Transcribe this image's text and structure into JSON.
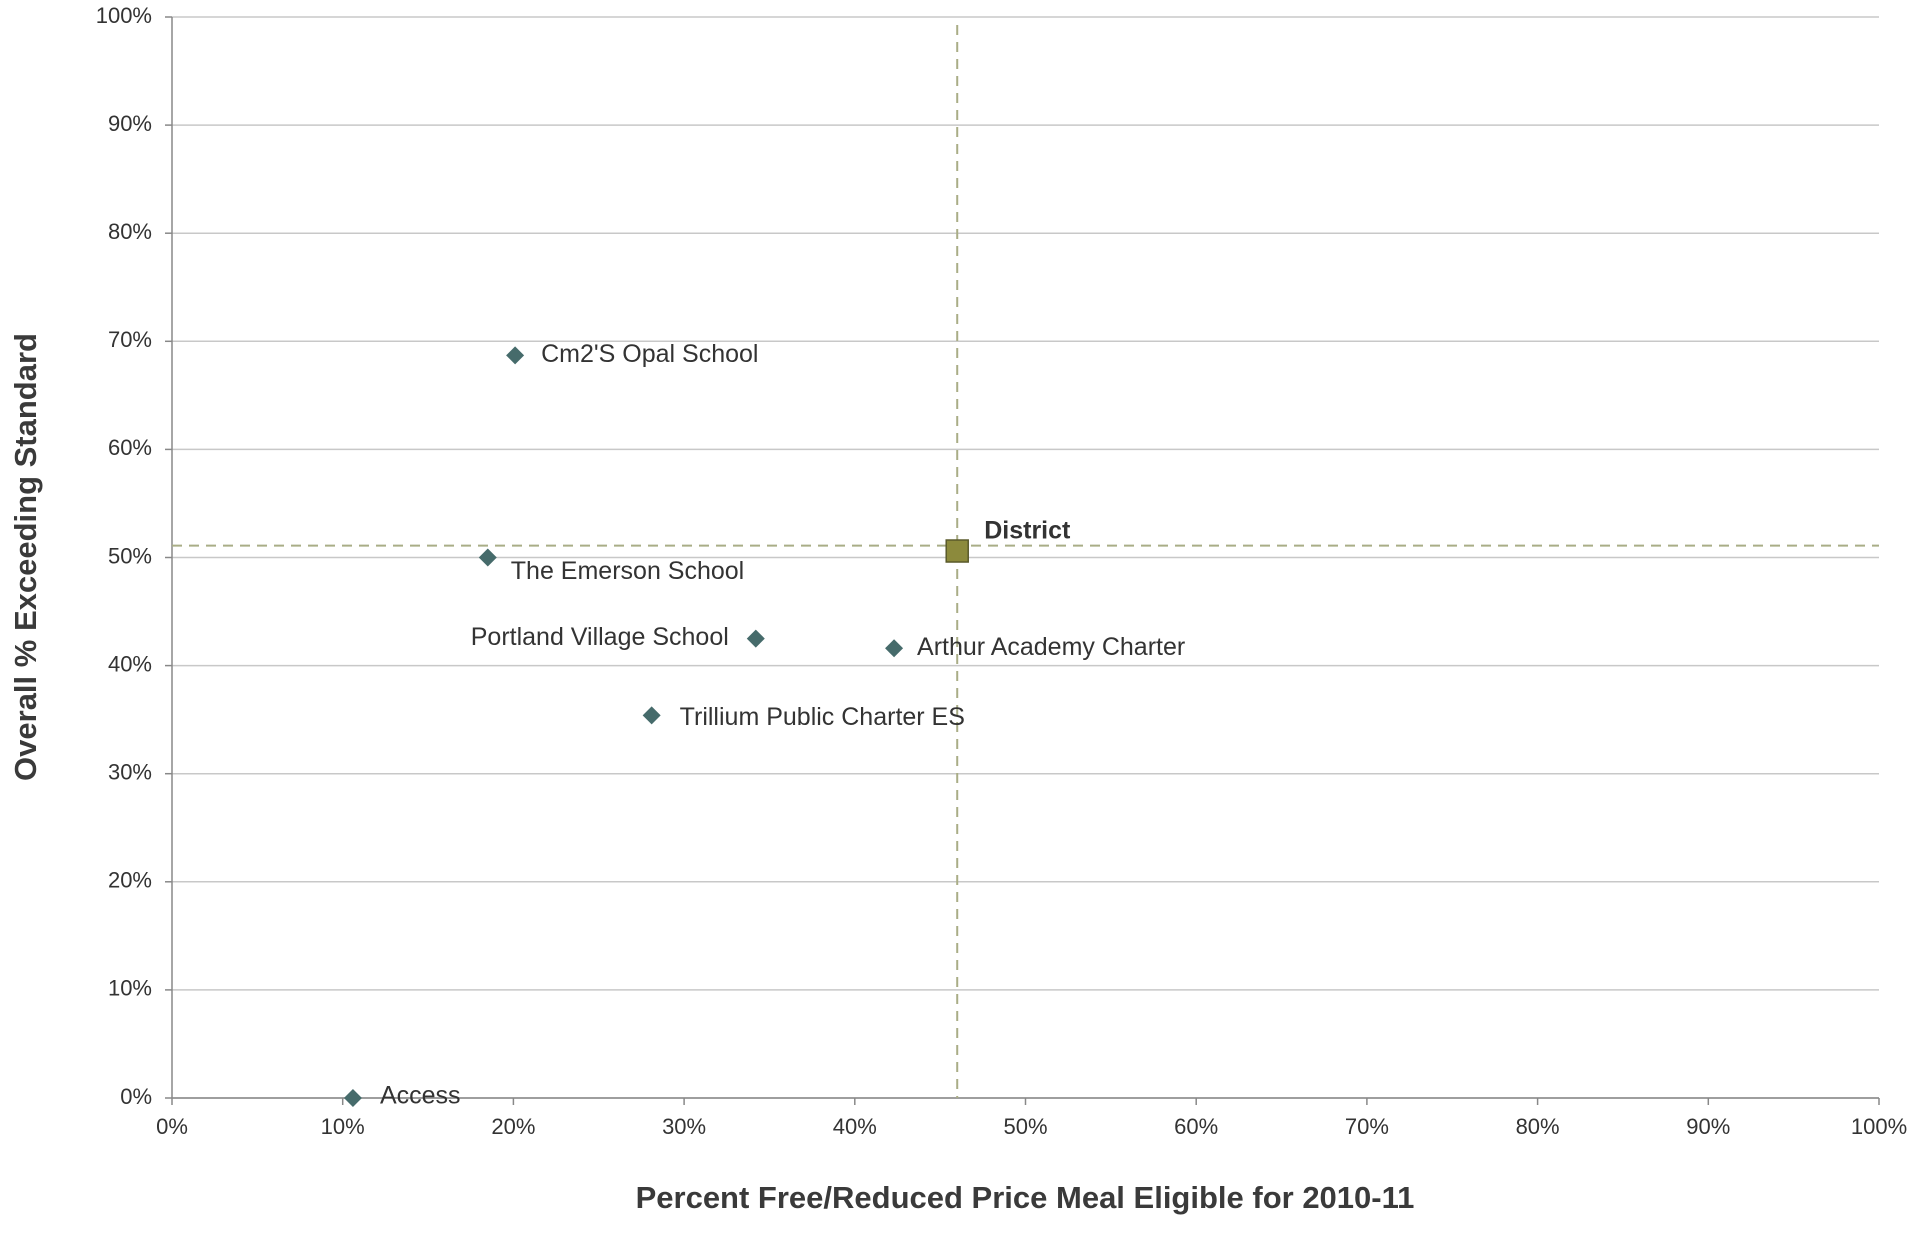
{
  "chart_data": {
    "type": "scatter",
    "x_label": "Percent Free/Reduced Price Meal Eligible for 2010-11",
    "y_label": "Overall % Exceeding Standard",
    "labels": [
      "Access",
      "Cm2'S Opal School",
      "The Emerson School",
      "Portland Village School",
      "Arthur Academy Charter",
      "Trillium Public Charter ES"
    ],
    "x": [
      10.6,
      20.1,
      18.5,
      34.2,
      42.3,
      28.1
    ],
    "values": [
      0,
      68.7,
      50.0,
      42.5,
      41.6,
      35.4
    ],
    "color": "#466b6b",
    "district": {
      "label": "District",
      "x": 46.0,
      "y": 50.6,
      "color": "#8c8a3c"
    },
    "reference_lines": {
      "x": 46.0,
      "y": 51.1,
      "color": "#a9ad86"
    },
    "xlim": [
      0,
      100
    ],
    "ylim": [
      0,
      100
    ],
    "xticks": [
      {
        "value": 0,
        "label": "0%"
      },
      {
        "value": 10,
        "label": "10%"
      },
      {
        "value": 20,
        "label": "20%"
      },
      {
        "value": 30,
        "label": "30%"
      },
      {
        "value": 40,
        "label": "40%"
      },
      {
        "value": 50,
        "label": "50%"
      },
      {
        "value": 60,
        "label": "60%"
      },
      {
        "value": 70,
        "label": "70%"
      },
      {
        "value": 80,
        "label": "80%"
      },
      {
        "value": 90,
        "label": "90%"
      },
      {
        "value": 100,
        "label": "100%"
      }
    ],
    "yticks": [
      {
        "value": 0,
        "label": "0%"
      },
      {
        "value": 10,
        "label": "10%"
      },
      {
        "value": 20,
        "label": "20%"
      },
      {
        "value": 30,
        "label": "30%"
      },
      {
        "value": 40,
        "label": "40%"
      },
      {
        "value": 50,
        "label": "50%"
      },
      {
        "value": 60,
        "label": "60%"
      },
      {
        "value": 70,
        "label": "70%"
      },
      {
        "value": 80,
        "label": "80%"
      },
      {
        "value": 90,
        "label": "90%"
      },
      {
        "value": 100,
        "label": "100%"
      }
    ],
    "grid": true
  }
}
